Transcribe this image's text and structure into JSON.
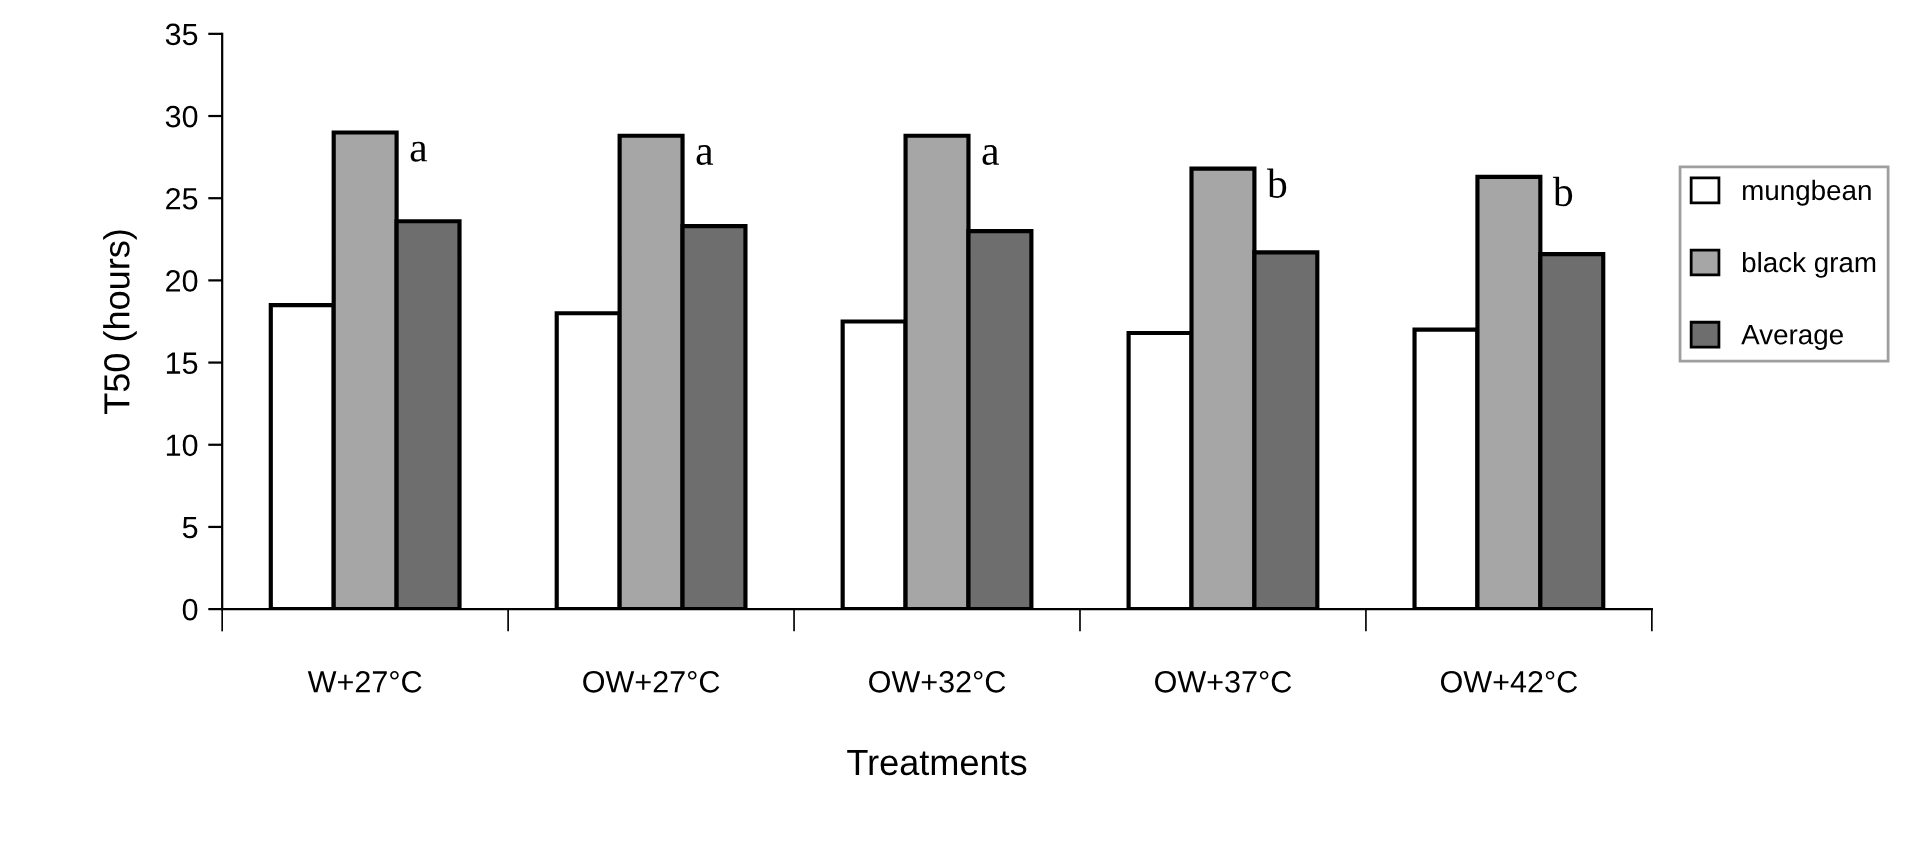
{
  "chart_data": {
    "type": "bar",
    "xlabel": "Treatments",
    "ylabel": "T50 (hours)",
    "categories": [
      "W+27°C",
      "OW+27°C",
      "OW+32°C",
      "OW+37°C",
      "OW+42°C"
    ],
    "series": [
      {
        "name": "mungbean",
        "color": "#ffffff",
        "values": [
          18.5,
          18,
          17.5,
          16.8,
          17
        ]
      },
      {
        "name": "black gram",
        "color": "#a6a6a6",
        "values": [
          29,
          28.8,
          28.8,
          26.8,
          26.3
        ]
      },
      {
        "name": "Average",
        "color": "#6e6e6e",
        "values": [
          23.6,
          23.3,
          23,
          21.7,
          21.6
        ]
      }
    ],
    "ylim": [
      0,
      35
    ],
    "yticks": [
      0,
      5,
      10,
      15,
      20,
      25,
      30,
      35
    ],
    "grid": false,
    "legend": "right",
    "annotations": [
      "a",
      "a",
      "a",
      "b",
      "b"
    ]
  }
}
